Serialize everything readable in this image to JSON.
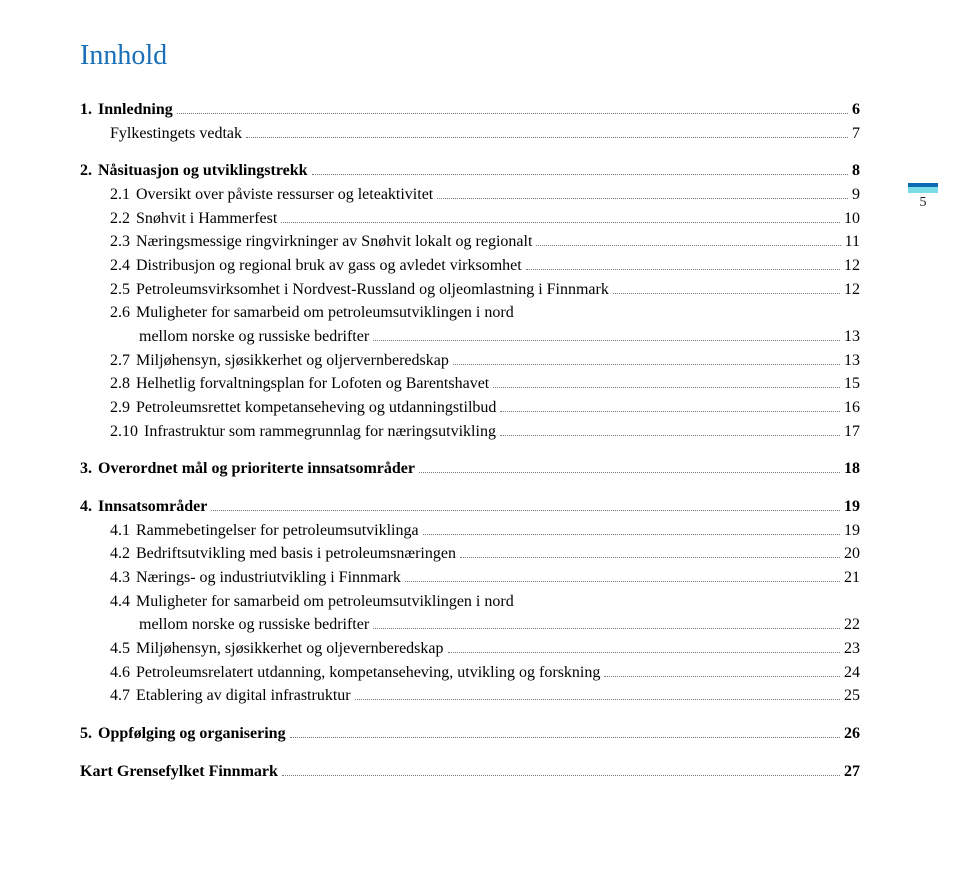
{
  "title": "Innhold",
  "pageNumber": "5",
  "colors": {
    "titleColor": "#1970b9",
    "textColor": "#000000",
    "pageBarTop": "#0a6ab4",
    "pageBarMid": "#7bdce8",
    "leaderColor": "#777777",
    "background": "#ffffff"
  },
  "toc": {
    "s1": {
      "num": "1.",
      "label": "Innledning",
      "page": "6",
      "c1": {
        "label": "Fylkestingets vedtak",
        "page": "7"
      }
    },
    "s2": {
      "num": "2.",
      "label": "Nåsituasjon og utviklingstrekk",
      "page": "8",
      "c1": {
        "num": "2.1",
        "label": "Oversikt over påviste ressurser og leteaktivitet",
        "page": "9"
      },
      "c2": {
        "num": "2.2",
        "label": "Snøhvit i Hammerfest",
        "page": "10"
      },
      "c3": {
        "num": "2.3",
        "label": "Næringsmessige ringvirkninger av Snøhvit lokalt og regionalt",
        "page": "11"
      },
      "c4": {
        "num": "2.4",
        "label": "Distribusjon og regional bruk av gass og avledet virksomhet",
        "page": "12"
      },
      "c5": {
        "num": "2.5",
        "label": "Petroleumsvirksomhet i Nordvest-Russland og oljeomlastning i Finnmark",
        "page": "12"
      },
      "c6": {
        "num": "2.6",
        "labelA": "Muligheter for samarbeid om petroleumsutviklingen i nord",
        "labelB": "mellom norske og russiske bedrifter",
        "page": "13"
      },
      "c7": {
        "num": "2.7",
        "label": "Miljøhensyn, sjøsikkerhet og oljervernberedskap",
        "page": "13"
      },
      "c8": {
        "num": "2.8",
        "label": "Helhetlig forvaltningsplan for Lofoten og Barentshavet",
        "page": "15"
      },
      "c9": {
        "num": "2.9",
        "label": "Petroleumsrettet kompetanseheving og utdanningstilbud",
        "page": "16"
      },
      "c10": {
        "num": "2.10",
        "label": "Infrastruktur som rammegrunnlag for næringsutvikling",
        "page": "17"
      }
    },
    "s3": {
      "num": "3.",
      "label": "Overordnet mål og prioriterte innsatsområder",
      "page": "18"
    },
    "s4": {
      "num": "4.",
      "label": "Innsatsområder",
      "page": "19",
      "c1": {
        "num": "4.1",
        "label": "Rammebetingelser for petroleumsutviklinga",
        "page": "19"
      },
      "c2": {
        "num": "4.2",
        "label": "Bedriftsutvikling med basis i petroleumsnæringen",
        "page": "20"
      },
      "c3": {
        "num": "4.3",
        "label": "Nærings- og industriutvikling i Finnmark",
        "page": "21"
      },
      "c4": {
        "num": "4.4",
        "labelA": "Muligheter for samarbeid om petroleumsutviklingen i nord",
        "labelB": "mellom norske og russiske  bedrifter",
        "page": "22"
      },
      "c5": {
        "num": "4.5",
        "label": "Miljøhensyn, sjøsikkerhet og oljevernberedskap",
        "page": "23"
      },
      "c6": {
        "num": "4.6",
        "label": "Petroleumsrelatert utdanning, kompetanseheving, utvikling og forskning",
        "page": "24"
      },
      "c7": {
        "num": "4.7",
        "label": "Etablering av digital  infrastruktur",
        "page": "25"
      }
    },
    "s5": {
      "num": "5.",
      "label": "Oppfølging og organisering",
      "page": "26"
    },
    "map": {
      "label": "Kart Grensefylket Finnmark",
      "page": "27"
    }
  }
}
